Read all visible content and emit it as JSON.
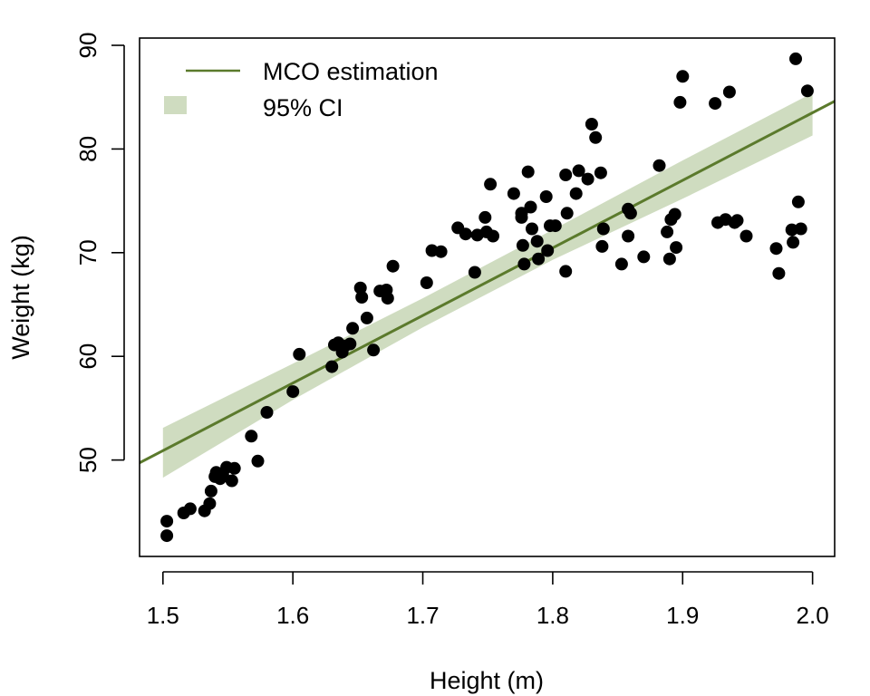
{
  "chart_data": {
    "type": "scatter",
    "title": "",
    "xlabel": "Height (m)",
    "ylabel": "Weight (kg)",
    "xlim": [
      1.482,
      2.017
    ],
    "ylim": [
      40.7,
      90.7
    ],
    "xticks": [
      "1.5",
      "1.6",
      "1.7",
      "1.8",
      "1.9",
      "2.0"
    ],
    "yticks": [
      "50",
      "60",
      "70",
      "80",
      "90"
    ],
    "grid": false,
    "legend_position": "top-left",
    "legend": [
      {
        "label": "MCO estimation",
        "kind": "line"
      },
      {
        "label": "95% CI",
        "kind": "band"
      }
    ],
    "colors": {
      "points": "#000000",
      "fit_line": "#5b7a2c",
      "ci_band": "#cfdcc0"
    },
    "fit_line": {
      "x": [
        1.48,
        2.02
      ],
      "y": [
        49.6,
        84.8
      ]
    },
    "ci_band": {
      "x": [
        1.5,
        1.6,
        1.7,
        1.8,
        1.9,
        2.0
      ],
      "lower": [
        48.3,
        55.8,
        62.8,
        69.3,
        75.2,
        81.3
      ],
      "upper": [
        53.1,
        59.3,
        65.6,
        72.2,
        78.9,
        85.4
      ]
    },
    "points": [
      [
        1.503,
        42.7
      ],
      [
        1.503,
        44.1
      ],
      [
        1.516,
        44.9
      ],
      [
        1.521,
        45.3
      ],
      [
        1.532,
        45.1
      ],
      [
        1.536,
        45.8
      ],
      [
        1.537,
        47.0
      ],
      [
        1.54,
        48.4
      ],
      [
        1.541,
        48.8
      ],
      [
        1.544,
        48.2
      ],
      [
        1.546,
        48.6
      ],
      [
        1.549,
        49.3
      ],
      [
        1.553,
        48.0
      ],
      [
        1.555,
        49.2
      ],
      [
        1.568,
        52.3
      ],
      [
        1.573,
        49.9
      ],
      [
        1.58,
        54.6
      ],
      [
        1.6,
        56.6
      ],
      [
        1.605,
        60.2
      ],
      [
        1.63,
        59.0
      ],
      [
        1.632,
        61.1
      ],
      [
        1.635,
        61.3
      ],
      [
        1.638,
        60.4
      ],
      [
        1.64,
        61.0
      ],
      [
        1.644,
        61.2
      ],
      [
        1.646,
        62.7
      ],
      [
        1.652,
        66.6
      ],
      [
        1.653,
        65.7
      ],
      [
        1.657,
        63.7
      ],
      [
        1.662,
        60.6
      ],
      [
        1.667,
        66.3
      ],
      [
        1.672,
        66.4
      ],
      [
        1.673,
        65.6
      ],
      [
        1.677,
        68.7
      ],
      [
        1.703,
        67.1
      ],
      [
        1.707,
        70.2
      ],
      [
        1.714,
        70.1
      ],
      [
        1.727,
        72.4
      ],
      [
        1.733,
        71.8
      ],
      [
        1.74,
        68.1
      ],
      [
        1.742,
        71.7
      ],
      [
        1.748,
        73.4
      ],
      [
        1.749,
        72.0
      ],
      [
        1.752,
        76.6
      ],
      [
        1.754,
        71.6
      ],
      [
        1.77,
        75.7
      ],
      [
        1.776,
        73.8
      ],
      [
        1.776,
        73.4
      ],
      [
        1.777,
        70.7
      ],
      [
        1.778,
        68.9
      ],
      [
        1.781,
        77.8
      ],
      [
        1.783,
        74.4
      ],
      [
        1.784,
        72.3
      ],
      [
        1.788,
        71.1
      ],
      [
        1.789,
        69.4
      ],
      [
        1.795,
        75.4
      ],
      [
        1.796,
        70.2
      ],
      [
        1.798,
        72.6
      ],
      [
        1.802,
        72.6
      ],
      [
        1.81,
        77.5
      ],
      [
        1.811,
        73.8
      ],
      [
        1.81,
        68.2
      ],
      [
        1.818,
        75.7
      ],
      [
        1.82,
        77.9
      ],
      [
        1.827,
        77.1
      ],
      [
        1.83,
        82.4
      ],
      [
        1.833,
        81.1
      ],
      [
        1.837,
        77.7
      ],
      [
        1.838,
        70.6
      ],
      [
        1.839,
        72.3
      ],
      [
        1.853,
        68.9
      ],
      [
        1.858,
        71.6
      ],
      [
        1.858,
        74.2
      ],
      [
        1.86,
        73.8
      ],
      [
        1.87,
        69.6
      ],
      [
        1.882,
        78.4
      ],
      [
        1.888,
        72.0
      ],
      [
        1.89,
        69.4
      ],
      [
        1.891,
        73.2
      ],
      [
        1.894,
        73.7
      ],
      [
        1.895,
        70.5
      ],
      [
        1.898,
        84.5
      ],
      [
        1.9,
        87.0
      ],
      [
        1.925,
        84.4
      ],
      [
        1.927,
        72.9
      ],
      [
        1.933,
        73.2
      ],
      [
        1.936,
        85.5
      ],
      [
        1.94,
        72.9
      ],
      [
        1.942,
        73.1
      ],
      [
        1.949,
        71.6
      ],
      [
        1.972,
        70.4
      ],
      [
        1.974,
        68.0
      ],
      [
        1.984,
        72.2
      ],
      [
        1.985,
        71.0
      ],
      [
        1.987,
        88.7
      ],
      [
        1.989,
        74.9
      ],
      [
        1.991,
        72.3
      ],
      [
        1.996,
        85.6
      ]
    ]
  }
}
